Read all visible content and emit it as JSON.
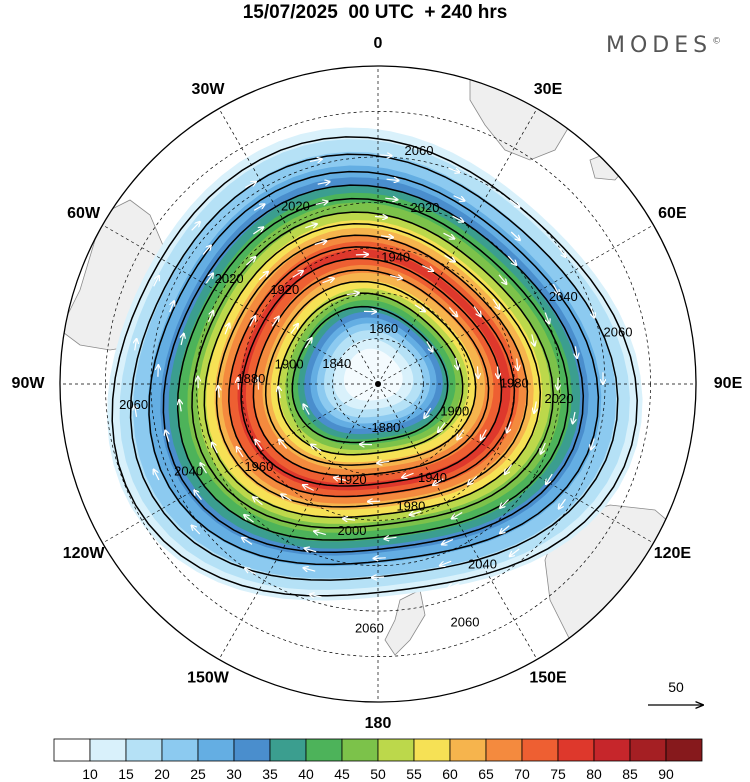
{
  "title": "15/07/2025  00 UTC  + 240 hrs",
  "brand": "MODES",
  "brand_mark": "©",
  "longitude_labels": [
    {
      "text": "0",
      "lon": 0
    },
    {
      "text": "30E",
      "lon": 30
    },
    {
      "text": "60E",
      "lon": 60
    },
    {
      "text": "90E",
      "lon": 90
    },
    {
      "text": "120E",
      "lon": 120
    },
    {
      "text": "150E",
      "lon": 150
    },
    {
      "text": "180",
      "lon": 180
    },
    {
      "text": "150W",
      "lon": -150
    },
    {
      "text": "120W",
      "lon": -120
    },
    {
      "text": "90W",
      "lon": -90
    },
    {
      "text": "60W",
      "lon": -60
    },
    {
      "text": "30W",
      "lon": -30
    }
  ],
  "contour_labels": [
    {
      "text": "2060",
      "lon": 10,
      "lat": -38
    },
    {
      "text": "2020",
      "lon": 15,
      "lat": -50
    },
    {
      "text": "2020",
      "lon": -25,
      "lat": -47
    },
    {
      "text": "1940",
      "lon": 8,
      "lat": -62
    },
    {
      "text": "2020",
      "lon": -55,
      "lat": -50
    },
    {
      "text": "1920",
      "lon": -45,
      "lat": -61
    },
    {
      "text": "1860",
      "lon": 6,
      "lat": -78
    },
    {
      "text": "2040",
      "lon": 65,
      "lat": -45
    },
    {
      "text": "2060",
      "lon": 78,
      "lat": -36
    },
    {
      "text": "1840",
      "lon": -65,
      "lat": -80
    },
    {
      "text": "1900",
      "lon": -78,
      "lat": -70
    },
    {
      "text": "1880",
      "lon": -88,
      "lat": -62
    },
    {
      "text": "2060",
      "lon": -95,
      "lat": -36
    },
    {
      "text": "1980",
      "lon": 90,
      "lat": -60
    },
    {
      "text": "2020",
      "lon": 95,
      "lat": -50
    },
    {
      "text": "1900",
      "lon": 110,
      "lat": -72
    },
    {
      "text": "1880",
      "lon": 170,
      "lat": -80
    },
    {
      "text": "2040",
      "lon": -115,
      "lat": -44
    },
    {
      "text": "1960",
      "lon": -125,
      "lat": -58
    },
    {
      "text": "1920",
      "lon": -165,
      "lat": -68
    },
    {
      "text": "1940",
      "lon": 150,
      "lat": -66
    },
    {
      "text": "1980",
      "lon": 165,
      "lat": -62
    },
    {
      "text": "2000",
      "lon": -170,
      "lat": -57
    },
    {
      "text": "2040",
      "lon": 150,
      "lat": -44
    },
    {
      "text": "2060",
      "lon": -178,
      "lat": -36
    },
    {
      "text": "2060",
      "lon": 160,
      "lat": -34
    }
  ],
  "wind_reference": "50",
  "colorbar": {
    "ticks": [
      "10",
      "15",
      "20",
      "25",
      "30",
      "35",
      "40",
      "45",
      "50",
      "55",
      "60",
      "65",
      "70",
      "75",
      "80",
      "85",
      "90"
    ],
    "colors": [
      "#ffffff",
      "#d9f1fb",
      "#b5e1f6",
      "#8ccaf0",
      "#64aee3",
      "#4a8ecd",
      "#3b9e8f",
      "#4db35a",
      "#7cc24a",
      "#bcd84b",
      "#f6e155",
      "#f6b44d",
      "#f48a3e",
      "#ee5f32",
      "#de382c",
      "#c6262b",
      "#a51f23",
      "#86191c"
    ]
  },
  "colors": {
    "land": "#efefef",
    "coast": "#8a8a8a",
    "contour": "#000000",
    "grid": "#000000"
  }
}
